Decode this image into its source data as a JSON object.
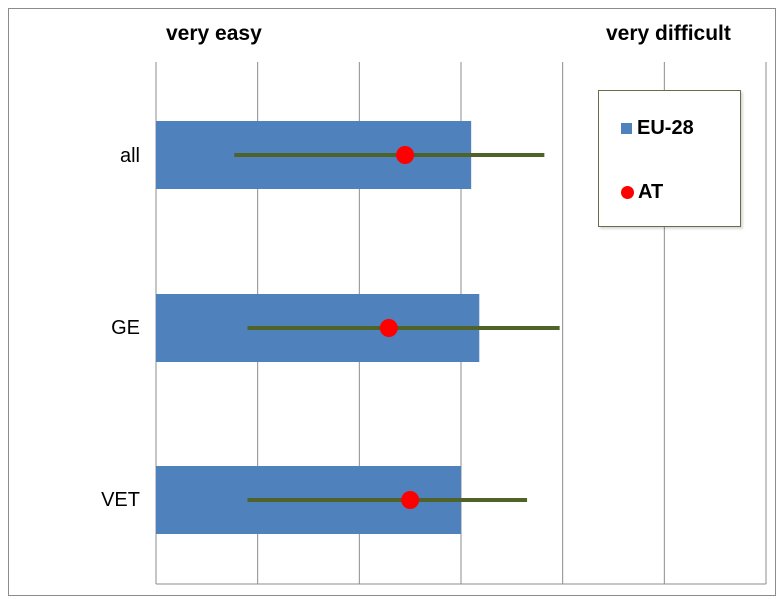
{
  "chart_data": {
    "type": "bar",
    "orientation": "horizontal",
    "categories": [
      "all",
      "GE",
      "VET"
    ],
    "x_axis": {
      "left_label": "very easy",
      "right_label": "very difficult",
      "range": [
        1,
        7
      ],
      "gridlines": [
        1,
        2,
        3,
        4,
        5,
        6,
        7
      ]
    },
    "grid": true,
    "legend_position": "top-right",
    "series": [
      {
        "name": "EU-28",
        "kind": "bar",
        "color": "#4f81bd",
        "values": [
          4.1,
          4.18,
          4.0
        ]
      },
      {
        "name": "AT",
        "kind": "point-with-range",
        "color": "#ff0000",
        "range_color": "#4f6228",
        "values": [
          3.45,
          3.29,
          3.5
        ],
        "range_low": [
          1.77,
          1.9,
          1.9
        ],
        "range_high": [
          4.82,
          4.97,
          4.65
        ]
      }
    ]
  }
}
